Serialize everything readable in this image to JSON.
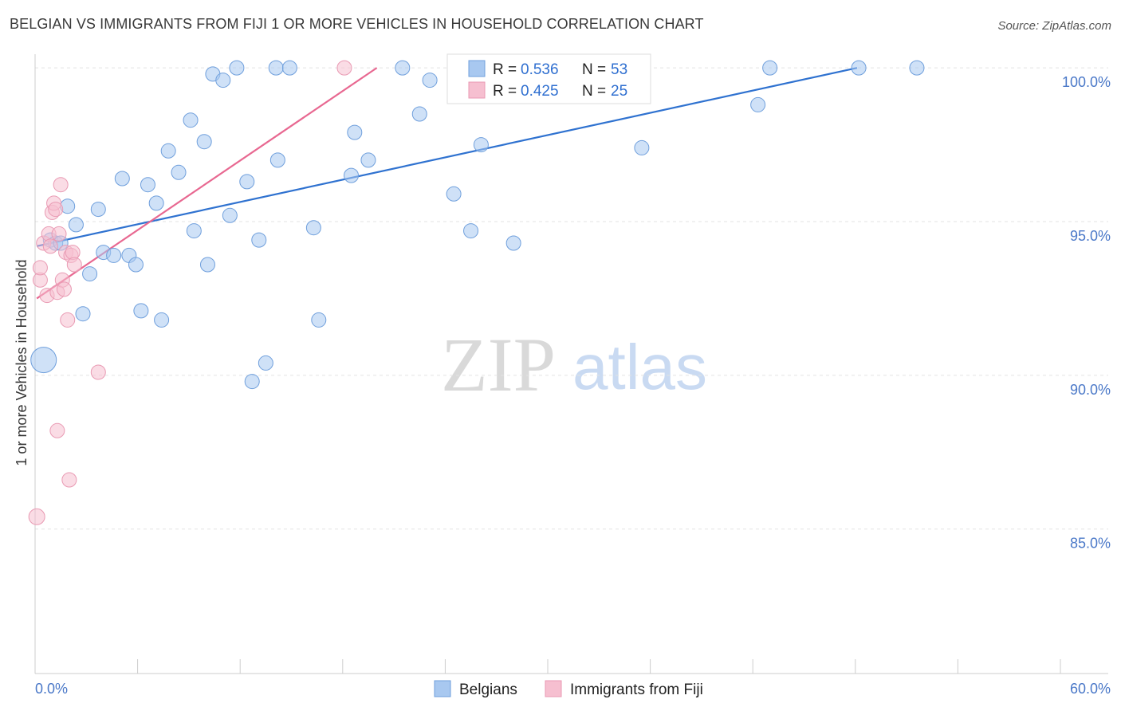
{
  "title": "BELGIAN VS IMMIGRANTS FROM FIJI 1 OR MORE VEHICLES IN HOUSEHOLD CORRELATION CHART",
  "source": "Source: ZipAtlas.com",
  "watermark": {
    "zip": "ZIP",
    "atlas": "atlas"
  },
  "colors": {
    "blue_fill": "#a8c8f0",
    "blue_stroke": "#6f9fdc",
    "blue_line": "#2f72d0",
    "pink_fill": "#f6bfd0",
    "pink_stroke": "#e99ab3",
    "pink_line": "#e86891",
    "grid": "#e3e3e3",
    "axis": "#cccccc",
    "tick_text": "#4a78c8"
  },
  "chart_data": {
    "type": "scatter",
    "xlabel": "",
    "ylabel": "1 or more Vehicles in Household",
    "xlim": [
      0,
      60
    ],
    "ylim": [
      80.3,
      100.6
    ],
    "x_tick_labels": [
      {
        "value": 0,
        "label": "0.0%"
      },
      {
        "value": 60,
        "label": "60.0%"
      }
    ],
    "x_minor_ticks": [
      0,
      6,
      12,
      18,
      24,
      30,
      36,
      42,
      48,
      54,
      60
    ],
    "y_ticks": [
      {
        "value": 100,
        "label": "100.0%"
      },
      {
        "value": 95,
        "label": "95.0%"
      },
      {
        "value": 90,
        "label": "90.0%"
      },
      {
        "value": 85,
        "label": "85.0%"
      }
    ],
    "legend": {
      "entries": [
        {
          "r_label": "R = ",
          "r_value": "0.536",
          "n_label": "N = ",
          "n_value": "53"
        },
        {
          "r_label": "R = ",
          "r_value": "0.425",
          "n_label": "N = ",
          "n_value": "25"
        }
      ]
    },
    "series": [
      {
        "name": "Belgians",
        "color": "blue",
        "trend": {
          "x0": 0.1,
          "y0": 94.2,
          "x1": 48.1,
          "y1": 100.0
        },
        "points": [
          [
            0.5,
            90.5,
            16
          ],
          [
            0.9,
            94.4,
            9
          ],
          [
            1.2,
            94.3,
            9
          ],
          [
            1.5,
            94.3,
            9
          ],
          [
            1.9,
            95.5,
            9
          ],
          [
            2.4,
            94.9,
            9
          ],
          [
            2.8,
            92.0,
            9
          ],
          [
            3.2,
            93.3,
            9
          ],
          [
            3.7,
            95.4,
            9
          ],
          [
            4.0,
            94.0,
            9
          ],
          [
            4.6,
            93.9,
            9
          ],
          [
            5.1,
            96.4,
            9
          ],
          [
            5.5,
            93.9,
            9
          ],
          [
            5.9,
            93.6,
            9
          ],
          [
            6.2,
            92.1,
            9
          ],
          [
            6.6,
            96.2,
            9
          ],
          [
            7.1,
            95.6,
            9
          ],
          [
            7.4,
            91.8,
            9
          ],
          [
            7.8,
            97.3,
            9
          ],
          [
            8.4,
            96.6,
            9
          ],
          [
            9.1,
            98.3,
            9
          ],
          [
            9.3,
            94.7,
            9
          ],
          [
            9.9,
            97.6,
            9
          ],
          [
            10.1,
            93.6,
            9
          ],
          [
            10.4,
            99.8,
            9
          ],
          [
            11.0,
            99.6,
            9
          ],
          [
            11.4,
            95.2,
            9
          ],
          [
            11.8,
            100.0,
            9
          ],
          [
            12.4,
            96.3,
            9
          ],
          [
            12.7,
            89.8,
            9
          ],
          [
            13.1,
            94.4,
            9
          ],
          [
            13.5,
            90.4,
            9
          ],
          [
            14.1,
            100.0,
            9
          ],
          [
            14.2,
            97.0,
            9
          ],
          [
            14.9,
            100.0,
            9
          ],
          [
            16.3,
            94.8,
            9
          ],
          [
            16.6,
            91.8,
            9
          ],
          [
            18.5,
            96.5,
            9
          ],
          [
            18.7,
            97.9,
            9
          ],
          [
            19.5,
            97.0,
            9
          ],
          [
            21.5,
            100.0,
            9
          ],
          [
            22.5,
            98.5,
            9
          ],
          [
            23.1,
            99.6,
            9
          ],
          [
            24.5,
            95.9,
            9
          ],
          [
            25.5,
            94.7,
            9
          ],
          [
            26.1,
            97.5,
            9
          ],
          [
            28.0,
            94.3,
            9
          ],
          [
            35.5,
            97.4,
            9
          ],
          [
            42.3,
            98.8,
            9
          ],
          [
            43.0,
            100.0,
            9
          ],
          [
            48.2,
            100.0,
            9
          ],
          [
            51.6,
            100.0,
            9
          ]
        ]
      },
      {
        "name": "Immigrants from Fiji",
        "color": "pink",
        "trend": {
          "x0": 0.1,
          "y0": 92.5,
          "x1": 20.0,
          "y1": 100.0
        },
        "points": [
          [
            0.1,
            85.4,
            10
          ],
          [
            0.3,
            93.1,
            9
          ],
          [
            0.3,
            93.5,
            9
          ],
          [
            0.5,
            94.3,
            9
          ],
          [
            0.7,
            92.6,
            9
          ],
          [
            0.8,
            94.6,
            9
          ],
          [
            0.9,
            94.2,
            9
          ],
          [
            1.0,
            95.3,
            9
          ],
          [
            1.1,
            95.6,
            9
          ],
          [
            1.2,
            95.4,
            9
          ],
          [
            1.3,
            92.7,
            9
          ],
          [
            1.3,
            88.2,
            9
          ],
          [
            1.4,
            94.6,
            9
          ],
          [
            1.5,
            96.2,
            9
          ],
          [
            1.6,
            93.1,
            9
          ],
          [
            1.7,
            92.8,
            9
          ],
          [
            1.8,
            94.0,
            9
          ],
          [
            1.9,
            91.8,
            9
          ],
          [
            2.0,
            86.6,
            9
          ],
          [
            2.1,
            93.9,
            9
          ],
          [
            2.2,
            94.0,
            9
          ],
          [
            2.3,
            93.6,
            9
          ],
          [
            3.7,
            90.1,
            9
          ],
          [
            18.1,
            100.0,
            9
          ]
        ]
      }
    ]
  }
}
